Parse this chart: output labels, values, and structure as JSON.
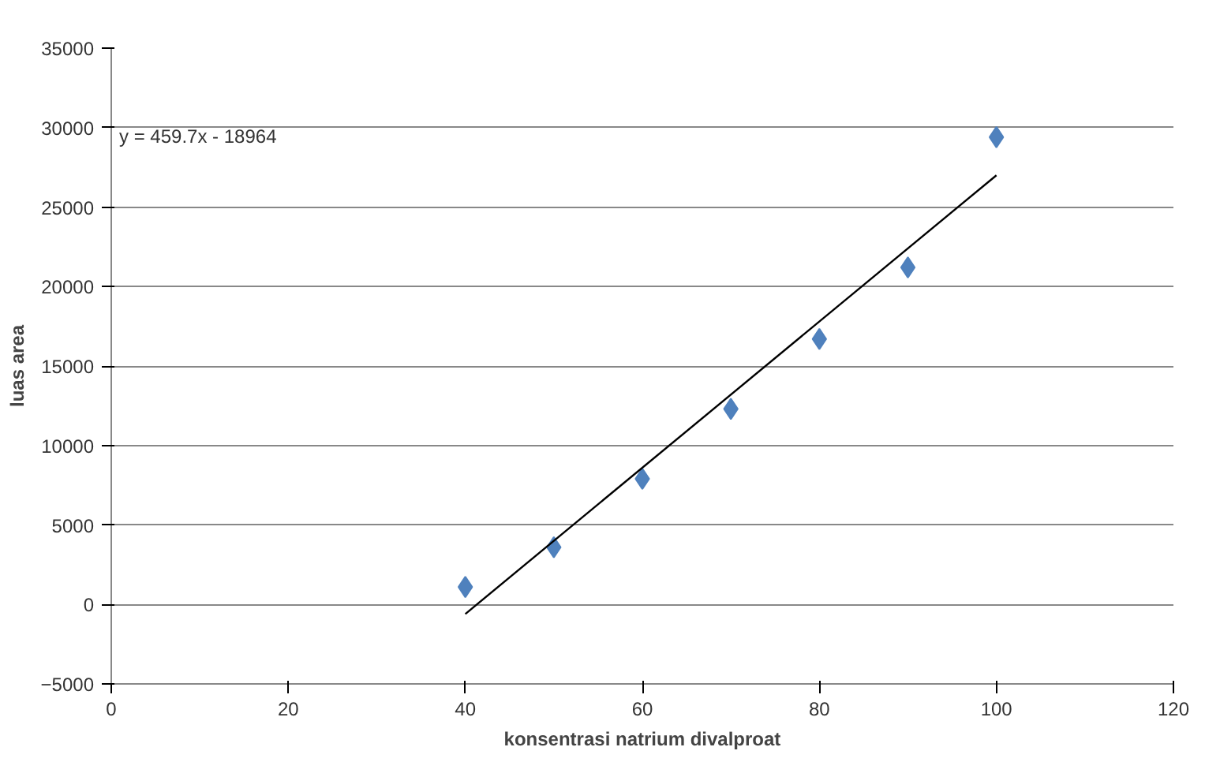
{
  "chart_data": {
    "type": "scatter",
    "xlabel": "konsentrasi natrium divalproat",
    "ylabel": "luas area",
    "series": [
      {
        "color": "#4f81bd",
        "marker": "diamond",
        "x": [
          40,
          50,
          60,
          70,
          80,
          90,
          100
        ],
        "values": [
          1100,
          3600,
          7900,
          12300,
          16700,
          21200,
          29400
        ]
      },
      {
        "type": "line",
        "color": "#000000",
        "marker": "none",
        "x": [
          40,
          100
        ],
        "values": [
          -600,
          27000
        ]
      }
    ],
    "xlim": [
      0,
      120
    ],
    "xticks": [
      0,
      20,
      40,
      60,
      80,
      100,
      120
    ],
    "ylim": [
      -5000,
      35000
    ],
    "yticks": [
      -5000,
      0,
      5000,
      10000,
      15000,
      20000,
      25000,
      30000,
      35000
    ],
    "grid": "y",
    "annotations": [
      "y = 459.7x - 18964"
    ]
  }
}
